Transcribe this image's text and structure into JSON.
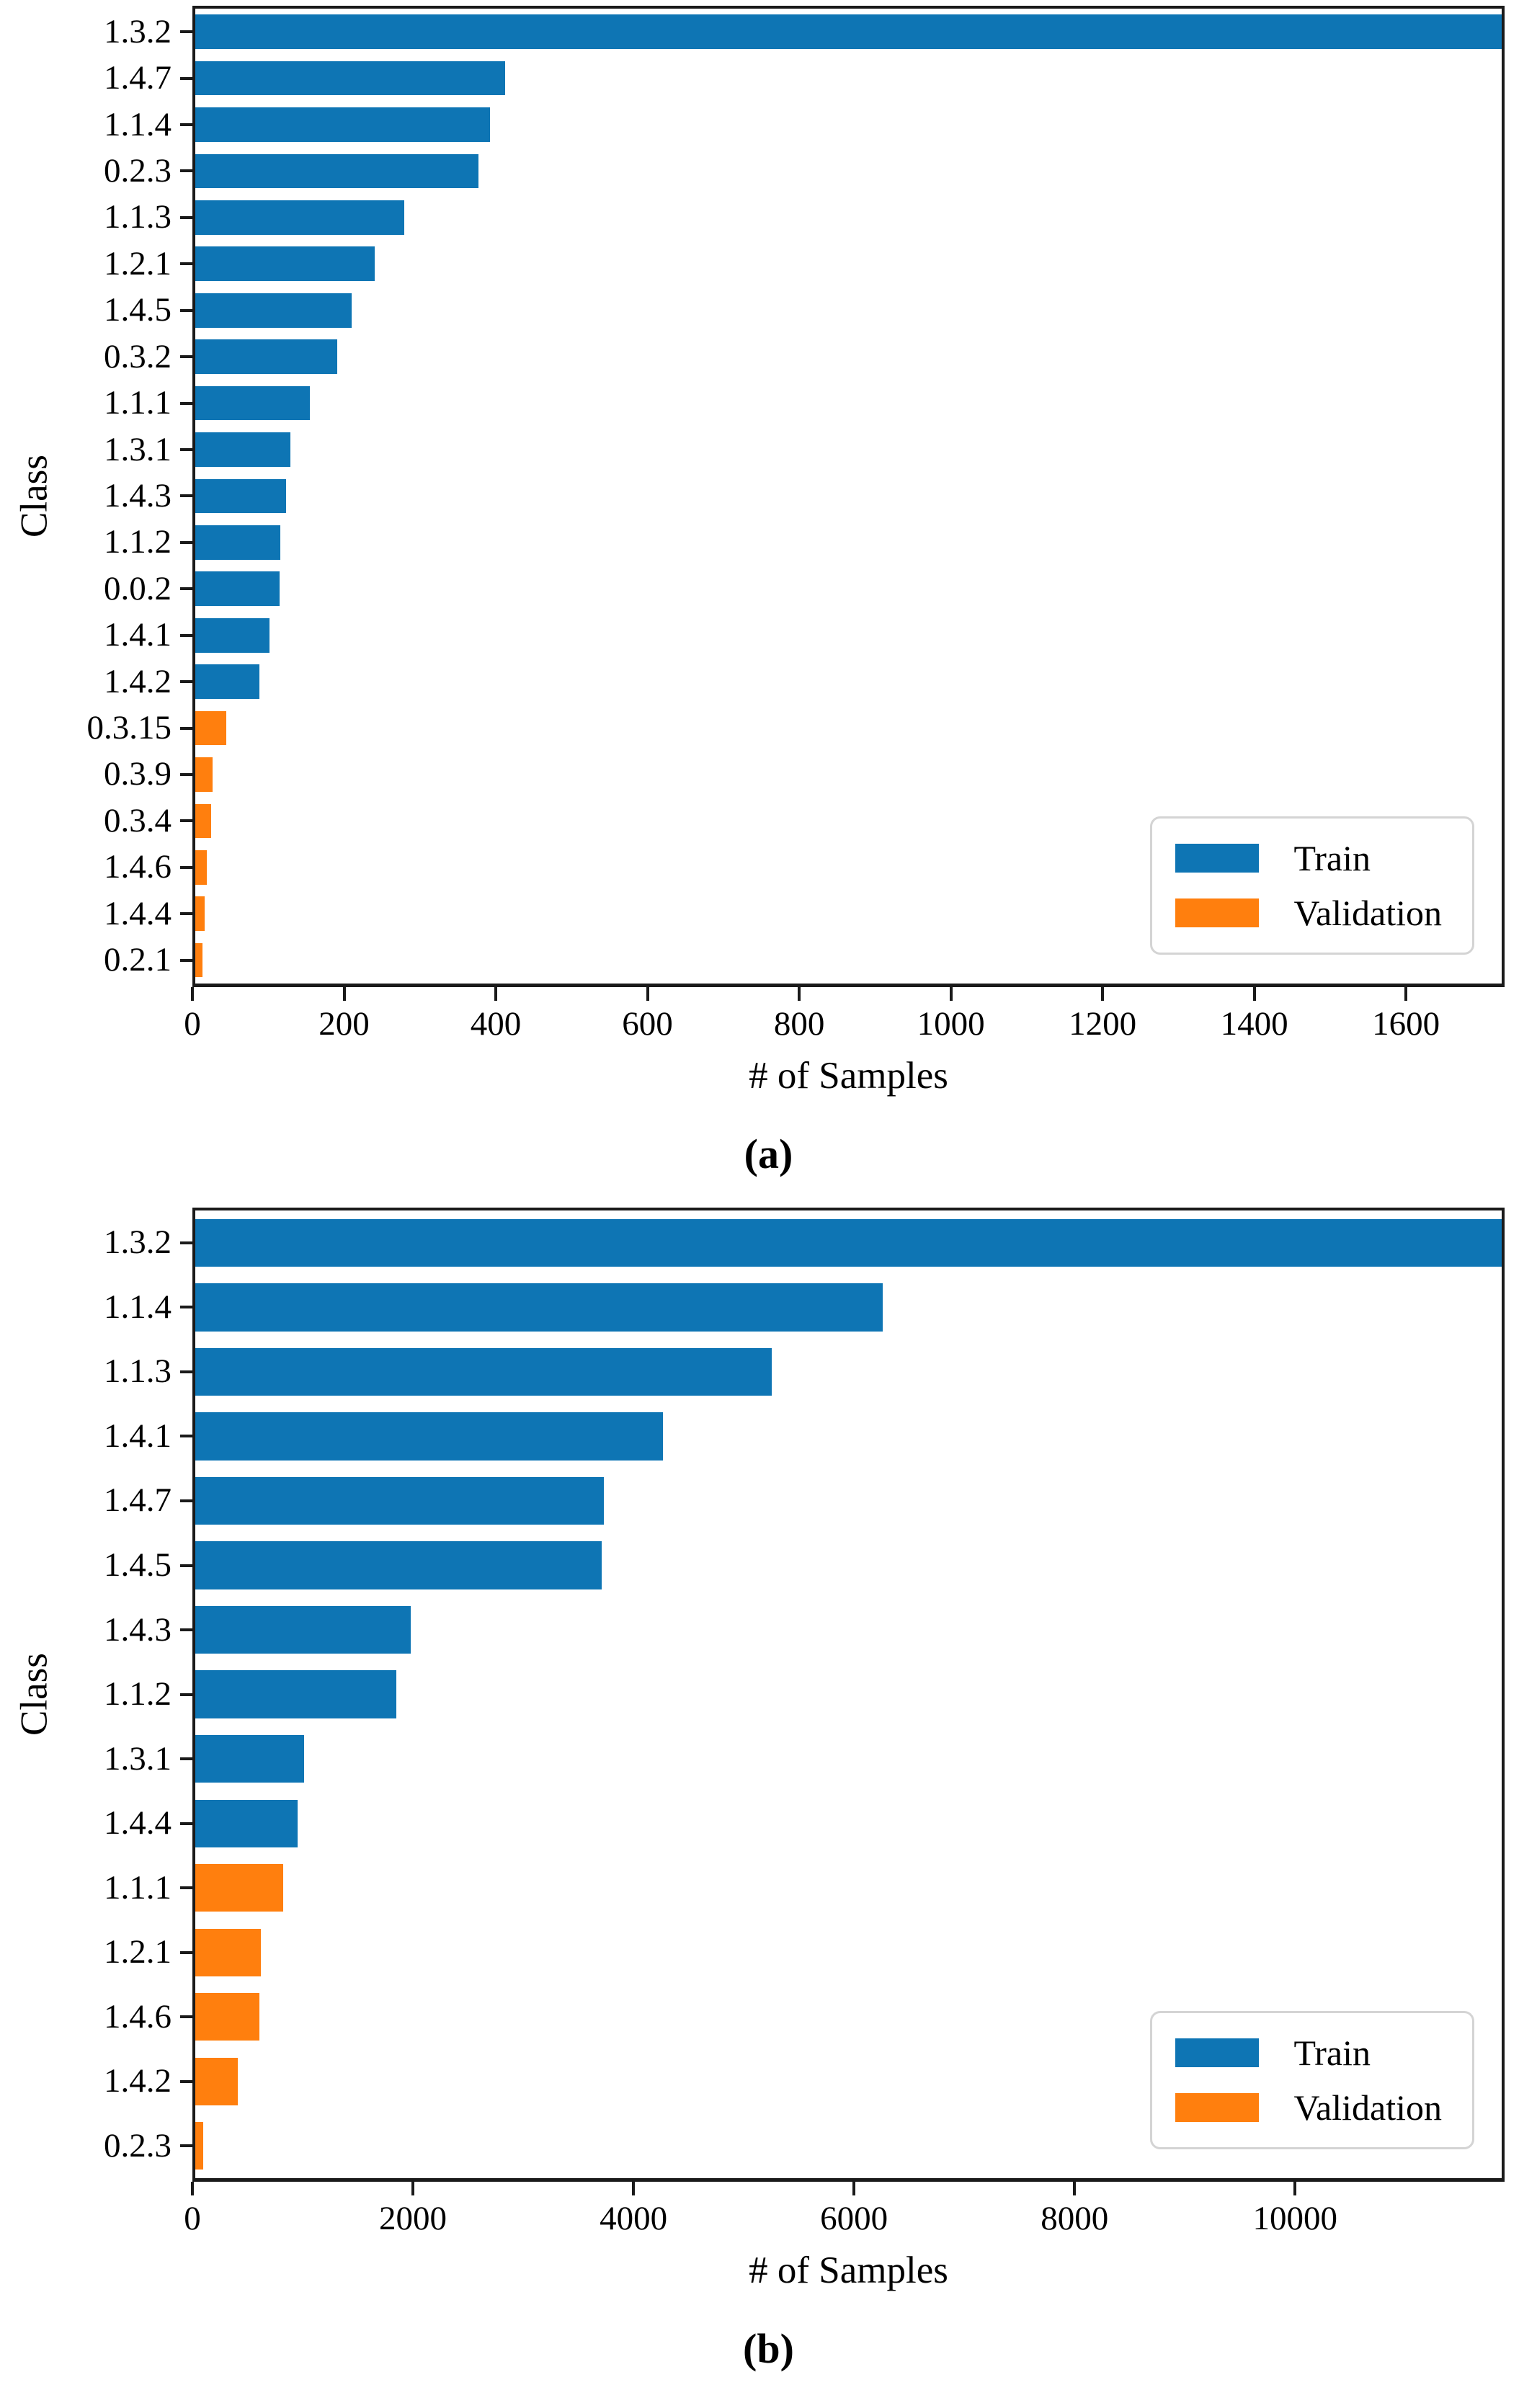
{
  "chart_data": [
    {
      "type": "bar",
      "orientation": "horizontal",
      "caption": "(a)",
      "xlabel": "# of Samples",
      "ylabel": "Class",
      "xlim": [
        0,
        1730
      ],
      "xticks": [
        0,
        200,
        400,
        600,
        800,
        1000,
        1200,
        1400,
        1600
      ],
      "grid": false,
      "legend": {
        "position": "lower right",
        "entries": [
          "Train",
          "Validation"
        ]
      },
      "series_colors": {
        "Train": "#0e75b4",
        "Validation": "#ff7f0e"
      },
      "bars": [
        {
          "category": "1.3.2",
          "value": 1730,
          "series": "Train"
        },
        {
          "category": "1.4.7",
          "value": 410,
          "series": "Train"
        },
        {
          "category": "1.1.4",
          "value": 390,
          "series": "Train"
        },
        {
          "category": "0.2.3",
          "value": 375,
          "series": "Train"
        },
        {
          "category": "1.1.3",
          "value": 277,
          "series": "Train"
        },
        {
          "category": "1.2.1",
          "value": 238,
          "series": "Train"
        },
        {
          "category": "1.4.5",
          "value": 207,
          "series": "Train"
        },
        {
          "category": "0.3.2",
          "value": 188,
          "series": "Train"
        },
        {
          "category": "1.1.1",
          "value": 152,
          "series": "Train"
        },
        {
          "category": "1.3.1",
          "value": 126,
          "series": "Train"
        },
        {
          "category": "1.4.3",
          "value": 120,
          "series": "Train"
        },
        {
          "category": "1.1.2",
          "value": 113,
          "series": "Train"
        },
        {
          "category": "0.0.2",
          "value": 112,
          "series": "Train"
        },
        {
          "category": "1.4.1",
          "value": 98,
          "series": "Train"
        },
        {
          "category": "1.4.2",
          "value": 85,
          "series": "Train"
        },
        {
          "category": "0.3.15",
          "value": 41,
          "series": "Validation"
        },
        {
          "category": "0.3.9",
          "value": 23,
          "series": "Validation"
        },
        {
          "category": "0.3.4",
          "value": 21,
          "series": "Validation"
        },
        {
          "category": "1.4.6",
          "value": 15,
          "series": "Validation"
        },
        {
          "category": "1.4.4",
          "value": 12,
          "series": "Validation"
        },
        {
          "category": "0.2.1",
          "value": 10,
          "series": "Validation"
        }
      ]
    },
    {
      "type": "bar",
      "orientation": "horizontal",
      "caption": "(b)",
      "xlabel": "# of Samples",
      "ylabel": "Class",
      "xlim": [
        0,
        11900
      ],
      "xticks": [
        0,
        2000,
        4000,
        6000,
        8000,
        10000
      ],
      "grid": false,
      "legend": {
        "position": "lower right",
        "entries": [
          "Train",
          "Validation"
        ]
      },
      "series_colors": {
        "Train": "#0e75b4",
        "Validation": "#ff7f0e"
      },
      "bars": [
        {
          "category": "1.3.2",
          "value": 11900,
          "series": "Train"
        },
        {
          "category": "1.1.4",
          "value": 6260,
          "series": "Train"
        },
        {
          "category": "1.1.3",
          "value": 5250,
          "series": "Train"
        },
        {
          "category": "1.4.1",
          "value": 4260,
          "series": "Train"
        },
        {
          "category": "1.4.7",
          "value": 3720,
          "series": "Train"
        },
        {
          "category": "1.4.5",
          "value": 3700,
          "series": "Train"
        },
        {
          "category": "1.4.3",
          "value": 1960,
          "series": "Train"
        },
        {
          "category": "1.1.2",
          "value": 1830,
          "series": "Train"
        },
        {
          "category": "1.3.1",
          "value": 990,
          "series": "Train"
        },
        {
          "category": "1.4.4",
          "value": 930,
          "series": "Train"
        },
        {
          "category": "1.1.1",
          "value": 800,
          "series": "Validation"
        },
        {
          "category": "1.2.1",
          "value": 600,
          "series": "Validation"
        },
        {
          "category": "1.4.6",
          "value": 585,
          "series": "Validation"
        },
        {
          "category": "1.4.2",
          "value": 390,
          "series": "Validation"
        },
        {
          "category": "0.2.3",
          "value": 70,
          "series": "Validation"
        }
      ]
    }
  ]
}
